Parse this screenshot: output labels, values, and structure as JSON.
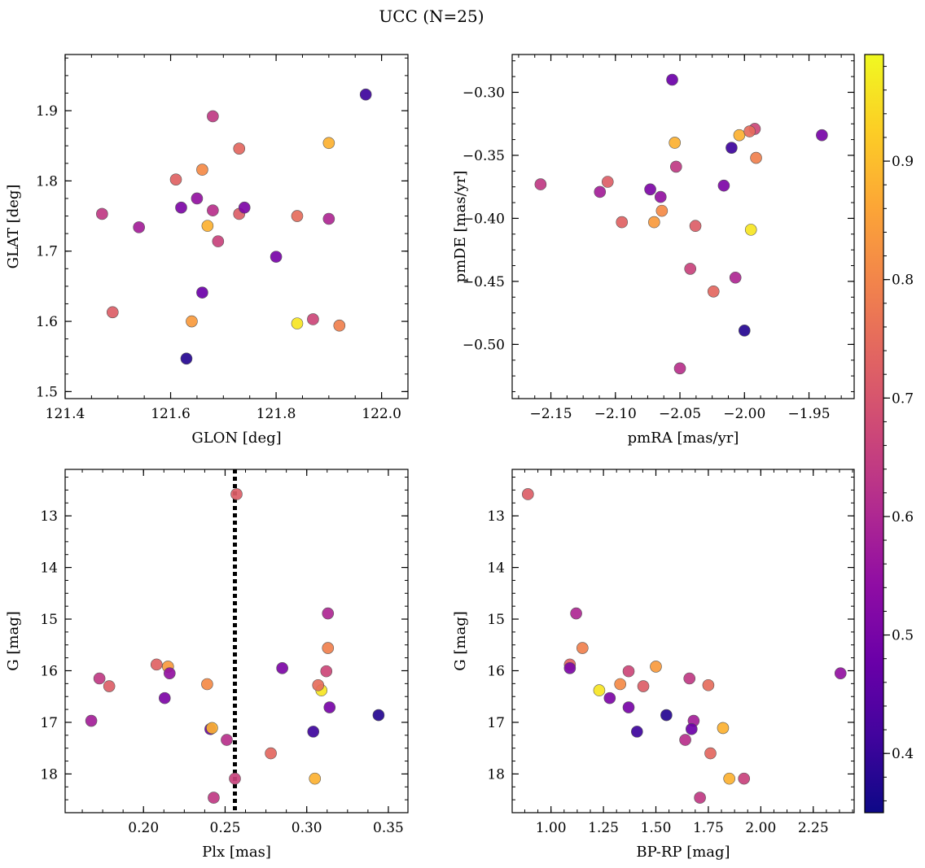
{
  "figure": {
    "title": "UCC (N=25)",
    "colormap": "plasma",
    "point_edge_color": "#555555"
  },
  "colorbar": {
    "range": [
      0.35,
      0.99
    ],
    "ticks": [
      0.4,
      0.5,
      0.6,
      0.7,
      0.8,
      0.9
    ],
    "tick_labels": [
      "0.4",
      "0.5",
      "0.6",
      "0.7",
      "0.8",
      "0.9"
    ]
  },
  "members_p": [
    0.64,
    0.58,
    0.72,
    0.73,
    0.51,
    0.84,
    0.55,
    0.81,
    0.48,
    0.88,
    0.64,
    0.62,
    0.66,
    0.72,
    0.74,
    0.51,
    0.41,
    0.88,
    0.75,
    0.96,
    0.67,
    0.79,
    0.5,
    0.6,
    0.38
  ],
  "chart_data": [
    {
      "id": "glon-glat",
      "type": "scatter",
      "title": "",
      "xlabel": "GLON [deg]",
      "ylabel": "GLAT [deg]",
      "xlim": [
        121.4,
        122.05
      ],
      "ylim": [
        1.49,
        1.98
      ],
      "xticks": [
        121.4,
        121.6,
        121.8,
        122.0
      ],
      "xtick_labels": [
        "121.4",
        "121.6",
        "121.8",
        "122.0"
      ],
      "yticks": [
        1.5,
        1.6,
        1.7,
        1.8,
        1.9
      ],
      "ytick_labels": [
        "1.5",
        "1.6",
        "1.7",
        "1.8",
        "1.9"
      ],
      "y_inverted": false,
      "x": [
        121.47,
        121.54,
        121.49,
        121.61,
        121.62,
        121.64,
        121.65,
        121.66,
        121.66,
        121.67,
        121.68,
        121.68,
        121.69,
        121.73,
        121.73,
        121.74,
        121.97,
        121.9,
        121.84,
        121.84,
        121.87,
        121.92,
        121.8,
        121.9,
        121.63
      ],
      "y": [
        1.753,
        1.734,
        1.613,
        1.802,
        1.762,
        1.6,
        1.775,
        1.816,
        1.641,
        1.736,
        1.892,
        1.758,
        1.714,
        1.753,
        1.846,
        1.762,
        1.923,
        1.854,
        1.75,
        1.597,
        1.603,
        1.594,
        1.692,
        1.746,
        1.547
      ]
    },
    {
      "id": "pmra-pmde",
      "type": "scatter",
      "title": "",
      "xlabel": "pmRA [mas/yr]",
      "ylabel": "pmDE [mas/yr]",
      "xlim": [
        -2.18,
        -1.915
      ],
      "ylim": [
        -0.543,
        -0.27
      ],
      "xticks": [
        -2.15,
        -2.1,
        -2.05,
        -2.0,
        -1.95
      ],
      "xtick_labels": [
        "−2.15",
        "−2.10",
        "−2.05",
        "−2.00",
        "−1.95"
      ],
      "yticks": [
        -0.5,
        -0.45,
        -0.4,
        -0.35,
        -0.3
      ],
      "ytick_labels": [
        "−0.50",
        "−0.45",
        "−0.40",
        "−0.35",
        "−0.30"
      ],
      "y_inverted": false,
      "x": [
        -2.158,
        -2.112,
        -2.106,
        -2.095,
        -2.073,
        -2.07,
        -2.065,
        -2.064,
        -2.056,
        -2.054,
        -2.053,
        -2.05,
        -2.042,
        -2.038,
        -2.024,
        -2.016,
        -2.01,
        -2.004,
        -1.996,
        -1.995,
        -1.992,
        -1.991,
        -1.94,
        -2.007,
        -2.0
      ],
      "y": [
        -0.373,
        -0.379,
        -0.371,
        -0.403,
        -0.377,
        -0.403,
        -0.383,
        -0.394,
        -0.29,
        -0.34,
        -0.359,
        -0.519,
        -0.44,
        -0.406,
        -0.458,
        -0.374,
        -0.344,
        -0.334,
        -0.331,
        -0.409,
        -0.329,
        -0.352,
        -0.334,
        -0.447,
        -0.489
      ],
      "point_order": [
        23,
        21,
        13,
        14,
        25,
        18,
        6,
        11,
        19,
        4,
        10,
        17,
        9,
        16,
        2,
        15,
        5,
        8,
        3,
        20,
        24,
        1,
        22,
        7,
        12
      ]
    },
    {
      "id": "plx-g",
      "type": "scatter",
      "title": "",
      "xlabel": "Plx [mas]",
      "ylabel": "G [mag]",
      "xlim": [
        0.152,
        0.362
      ],
      "ylim": [
        18.75,
        12.1
      ],
      "xticks": [
        0.2,
        0.25,
        0.3,
        0.35
      ],
      "xtick_labels": [
        "0.20",
        "0.25",
        "0.30",
        "0.35"
      ],
      "yticks": [
        13,
        14,
        15,
        16,
        17,
        18
      ],
      "ytick_labels": [
        "13",
        "14",
        "15",
        "16",
        "17",
        "18"
      ],
      "y_inverted": true,
      "vline": {
        "x": 0.256,
        "style": "dotted",
        "color": "#000000"
      },
      "x": [
        0.173,
        0.168,
        0.179,
        0.208,
        0.213,
        0.215,
        0.216,
        0.239,
        0.241,
        0.242,
        0.243,
        0.251,
        0.256,
        0.257,
        0.278,
        0.285,
        0.304,
        0.305,
        0.307,
        0.309,
        0.312,
        0.313,
        0.314,
        0.313,
        0.344
      ],
      "y": [
        16.15,
        16.97,
        16.3,
        15.88,
        16.53,
        15.92,
        16.05,
        16.26,
        17.13,
        17.11,
        18.46,
        17.34,
        18.09,
        12.58,
        17.6,
        15.95,
        17.18,
        18.09,
        16.28,
        16.38,
        16.01,
        15.56,
        16.71,
        14.89,
        16.86
      ],
      "point_order": [
        1,
        20,
        19,
        15,
        2,
        14,
        16,
        23,
        25,
        8,
        24,
        17,
        21,
        6,
        12,
        9,
        13,
        22,
        7,
        10,
        11,
        5,
        18,
        4,
        3
      ]
    },
    {
      "id": "bprp-g",
      "type": "scatter",
      "title": "",
      "xlabel": "BP-RP [mag]",
      "ylabel": "G [mag]",
      "xlim": [
        0.815,
        2.445
      ],
      "ylim": [
        18.75,
        12.1
      ],
      "xticks": [
        1.0,
        1.25,
        1.5,
        1.75,
        2.0,
        2.25
      ],
      "xtick_labels": [
        "1.00",
        "1.25",
        "1.50",
        "1.75",
        "2.00",
        "2.25"
      ],
      "yticks": [
        13,
        14,
        15,
        16,
        17,
        18
      ],
      "ytick_labels": [
        "13",
        "14",
        "15",
        "16",
        "17",
        "18"
      ],
      "y_inverted": true,
      "x": [
        1.66,
        1.68,
        1.44,
        1.09,
        1.28,
        1.5,
        2.38,
        1.33,
        1.67,
        1.82,
        1.71,
        1.64,
        1.92,
        0.89,
        1.76,
        1.09,
        1.41,
        1.85,
        1.75,
        1.23,
        1.37,
        1.15,
        1.37,
        1.12,
        1.55
      ],
      "y": [
        16.15,
        16.97,
        16.3,
        15.88,
        16.53,
        15.92,
        16.05,
        16.26,
        17.13,
        17.11,
        18.46,
        17.34,
        18.09,
        12.58,
        17.6,
        15.95,
        17.18,
        18.09,
        16.28,
        16.38,
        16.01,
        15.56,
        16.71,
        14.89,
        16.86
      ]
    }
  ]
}
